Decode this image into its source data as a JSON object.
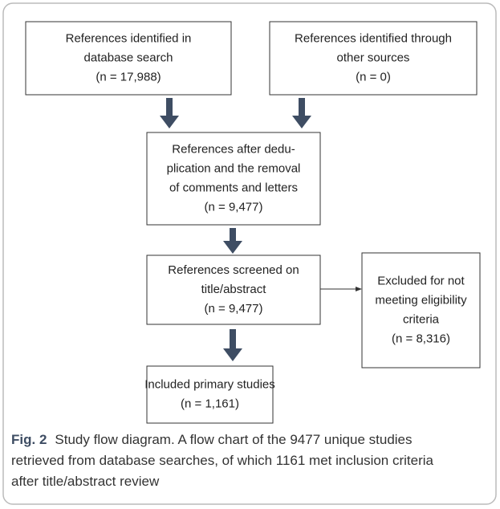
{
  "nodes": [
    {
      "lines": [
        "References identified in",
        "database search",
        "(n = 17,988)"
      ]
    },
    {
      "lines": [
        "References identified through",
        "other sources",
        "(n = 0)"
      ]
    },
    {
      "lines": [
        "References after dedu-",
        "plication and the removal",
        "of comments and letters",
        "(n = 9,477)"
      ]
    },
    {
      "lines": [
        "References screened on",
        "title/abstract",
        "(n = 9,477)"
      ]
    },
    {
      "lines": [
        "Excluded for not",
        "meeting eligibility",
        "criteria",
        "(n = 8,316)"
      ]
    },
    {
      "lines": [
        "Included primary studies",
        "(n = 1,161)"
      ]
    }
  ],
  "caption": {
    "label": "Fig. 2",
    "lines": [
      "Study flow diagram. A flow chart of the 9477 unique studies",
      "retrieved from database searches, of which 1161 met inclusion criteria",
      "after title/abstract review"
    ]
  }
}
